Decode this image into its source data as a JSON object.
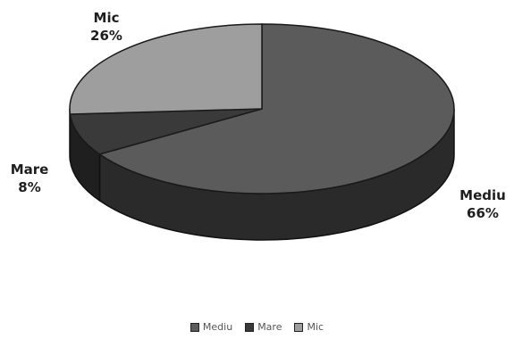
{
  "chart_data": {
    "type": "pie",
    "style": "3d",
    "categories": [
      "Mediu",
      "Mare",
      "Mic"
    ],
    "values": [
      66,
      8,
      26
    ],
    "value_labels": [
      "66%",
      "8%",
      "26%"
    ],
    "colors": [
      "#5b5b5b",
      "#3a3a3a",
      "#9e9e9e"
    ],
    "side_colors": [
      "#2a2a2a",
      "#1f1f1f",
      "#6a6a6a"
    ],
    "legend": {
      "placement": "bottom",
      "entries": [
        "Mediu",
        "Mare",
        "Mic"
      ]
    }
  }
}
